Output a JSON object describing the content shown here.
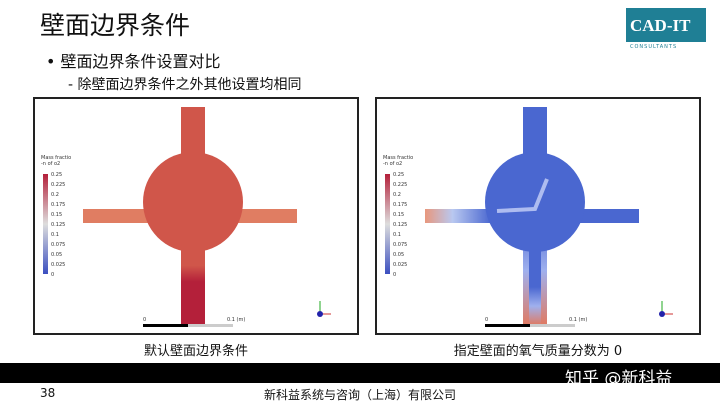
{
  "title": "壁面边界条件",
  "bullets": {
    "main": "• 壁面边界条件设置对比",
    "sub": "- 除壁面边界条件之外其他设置均相同"
  },
  "logo": {
    "text": "CAD-IT",
    "sub": "CONSULTANTS"
  },
  "legend": {
    "title1": "Mass fractio",
    "title2": "-n of o2",
    "ticks": [
      "0.25",
      "0.225",
      "0.2",
      "0.175",
      "0.15",
      "0.125",
      "0.1",
      "0.075",
      "0.05",
      "0.025",
      "0"
    ]
  },
  "scale": {
    "start": "0",
    "end": "0.1 (m)"
  },
  "panels": [
    {
      "caption": "默认壁面边界条件"
    },
    {
      "caption": "指定壁面的氧气质量分数为  0"
    }
  ],
  "footer": {
    "page": "38",
    "company": "新科益系统与咨询（上海）有限公司"
  },
  "watermark": "知乎 @新科益",
  "colors": {
    "high": "#b4203a",
    "low": "#3b4fc0"
  }
}
